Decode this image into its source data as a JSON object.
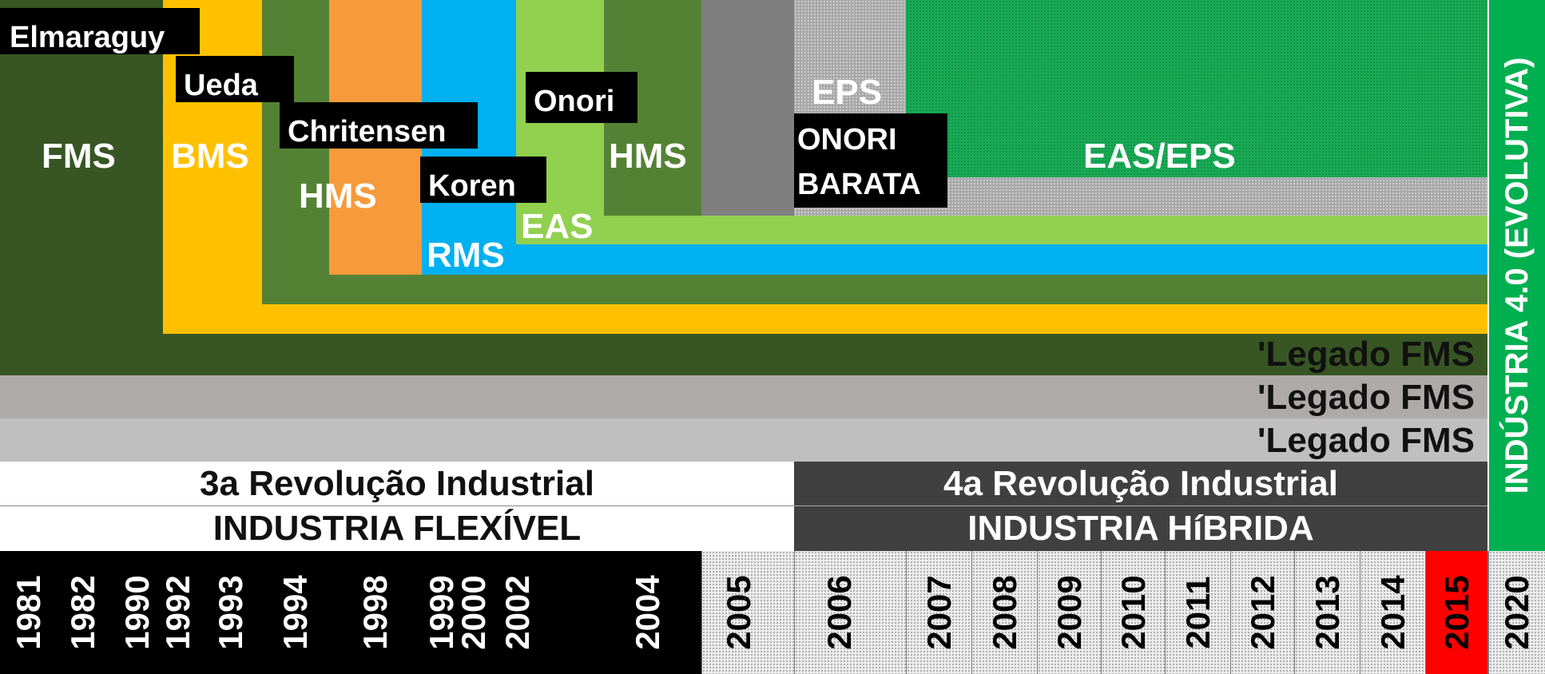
{
  "systems": {
    "fms": "FMS",
    "bms": "BMS",
    "hms_1": "HMS",
    "rms": "RMS",
    "eas": "EAS",
    "hms_2": "HMS",
    "eps": "EPS",
    "eas_eps": "EAS/EPS"
  },
  "authors": {
    "elmaraguy": "Elmaraguy",
    "ueda": "Ueda",
    "chritensen": "Chritensen",
    "koren": "Koren",
    "onori": "Onori",
    "onori_barata_line1": "ONORI",
    "onori_barata_line2": "BARATA"
  },
  "legacy": [
    "'Legado FMS",
    "'Legado FMS",
    "'Legado FMS"
  ],
  "eras": {
    "third": {
      "title": "3a Revolução Industrial",
      "subtitle": "INDUSTRIA FLEXÍVEL"
    },
    "fourth": {
      "title": "4a Revolução Industrial",
      "subtitle": "INDUSTRIA HíBRIDA"
    }
  },
  "industry_40": "INDÚSTRIA 4.0 (EVOLUTIVA)",
  "years": [
    "1981",
    "1982",
    "1990",
    "1992",
    "1993",
    "1994",
    "1998",
    "1999",
    "2000",
    "2002",
    "2004",
    "2005",
    "2006",
    "2007",
    "2008",
    "2009",
    "2010",
    "2011",
    "2012",
    "2013",
    "2014",
    "2015",
    "2020"
  ],
  "colors": {
    "dark_green": "#375623",
    "mid_green": "#548235",
    "yellow": "#ffc000",
    "orange": "#f79a3b",
    "blue": "#00b0f0",
    "light_green": "#92d050",
    "gray": "#7f7f7f",
    "bright_green": "#1aaa55",
    "highlight_red": "#ff0000"
  }
}
